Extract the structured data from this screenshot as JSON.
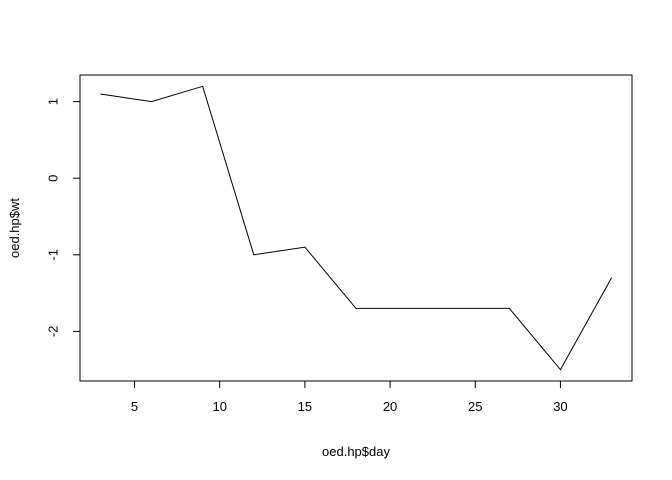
{
  "chart_data": {
    "type": "line",
    "xlabel": "oed.hp$day",
    "ylabel": "oed.hp$wt",
    "x": [
      3,
      6,
      9,
      12,
      15,
      18,
      21,
      24,
      27,
      30,
      33
    ],
    "series": [
      {
        "values": [
          1.1,
          1.0,
          1.2,
          -1.0,
          -0.9,
          -1.7,
          -1.7,
          -1.7,
          -1.7,
          -2.5,
          -1.3
        ]
      }
    ],
    "xlim": [
      1.8,
      34.2
    ],
    "ylim": [
      -2.648,
      1.348
    ],
    "xticks": [
      5,
      10,
      15,
      20,
      25,
      30
    ],
    "xtick_labels": [
      "5",
      "10",
      "15",
      "20",
      "25",
      "30"
    ],
    "yticks": [
      -2,
      -1,
      0,
      1
    ],
    "ytick_labels": [
      "-2",
      "-1",
      "0",
      "1"
    ],
    "grid": false,
    "line_color": "#000000"
  }
}
